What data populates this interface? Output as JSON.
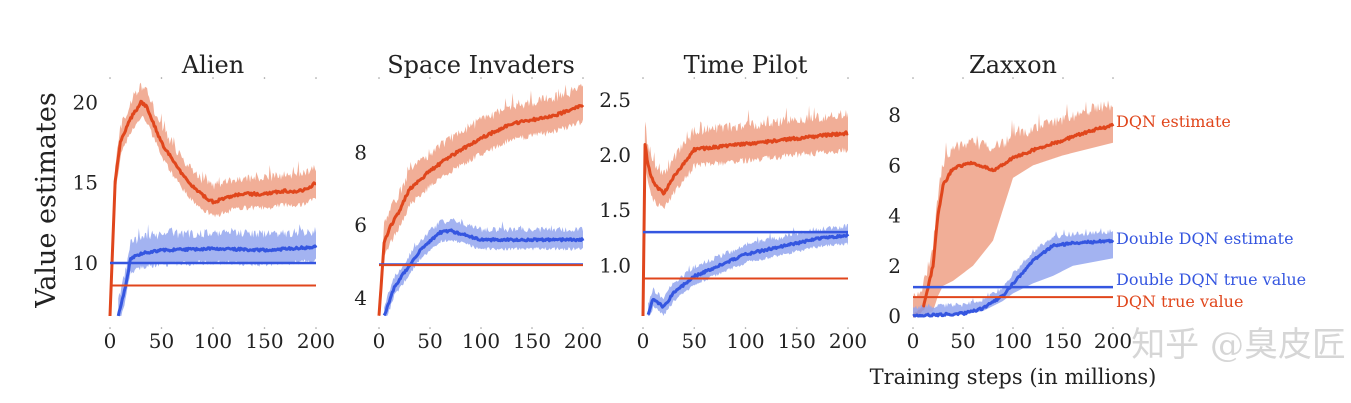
{
  "chart_data": {
    "type": "line",
    "ylabel": "Value estimates",
    "xlabel": "Training steps (in millions)",
    "colors": {
      "dqn": "#e0461c",
      "dqn_band": "#eea085",
      "ddqn": "#3556e0",
      "ddqn_band": "#93a6ee"
    },
    "legend": {
      "placement": "right of last panel",
      "dqn_estimate": "DQN estimate",
      "ddqn_estimate": "Double DQN estimate",
      "ddqn_true": "Double DQN true value",
      "dqn_true": "DQN true value"
    },
    "watermark": "知乎 @臭皮匠",
    "panels": [
      {
        "title": "Alien",
        "xlim": [
          0,
          200
        ],
        "ylim": [
          6.7,
          21.4
        ],
        "xticks": [
          "0",
          "50",
          "100",
          "150",
          "200"
        ],
        "yticks": [
          10,
          15,
          20
        ],
        "ytick_labels": [
          "10",
          "15",
          "20"
        ],
        "dqn_estimate": {
          "x": [
            0,
            5,
            10,
            20,
            30,
            35,
            50,
            60,
            70,
            80,
            90,
            100,
            110,
            120,
            130,
            140,
            150,
            160,
            170,
            180,
            190,
            200
          ],
          "y": [
            6.7,
            15,
            17.5,
            19,
            20,
            19.8,
            17.5,
            16.5,
            15.5,
            14.8,
            14.2,
            13.8,
            14,
            14.2,
            14.3,
            14.3,
            14.3,
            14.4,
            14.5,
            14.4,
            14.6,
            15
          ],
          "band": 0.7
        },
        "ddqn_estimate": {
          "x": [
            8,
            15,
            20,
            30,
            50,
            100,
            150,
            200
          ],
          "y": [
            6.7,
            8.5,
            10.3,
            10.6,
            10.8,
            10.9,
            10.8,
            11
          ],
          "band": 0.7
        },
        "dqn_true": 8.6,
        "ddqn_true": 10
      },
      {
        "title": "Space Invaders",
        "xlim": [
          0,
          200
        ],
        "ylim": [
          3.5,
          10
        ],
        "xticks": [
          "0",
          "50",
          "100",
          "150",
          "200"
        ],
        "yticks": [
          4,
          6,
          8
        ],
        "ytick_labels": [
          "4",
          "6",
          "8"
        ],
        "dqn_estimate": {
          "x": [
            0,
            5,
            10,
            20,
            30,
            50,
            70,
            100,
            130,
            150,
            170,
            190,
            200
          ],
          "y": [
            3.5,
            5.5,
            5.9,
            6.4,
            7.0,
            7.5,
            7.9,
            8.4,
            8.8,
            8.9,
            9.0,
            9.2,
            9.3
          ],
          "band": 0.35
        },
        "ddqn_estimate": {
          "x": [
            5,
            15,
            30,
            40,
            60,
            70,
            100,
            150,
            200
          ],
          "y": [
            3.5,
            4.3,
            4.9,
            5.3,
            5.8,
            5.85,
            5.6,
            5.6,
            5.6
          ],
          "band": 0.2
        },
        "dqn_true": 4.9,
        "ddqn_true": 4.92
      },
      {
        "title": "Time Pilot",
        "xlim": [
          0,
          200
        ],
        "ylim": [
          0.54,
          2.68
        ],
        "xticks": [
          "0",
          "50",
          "100",
          "150",
          "200"
        ],
        "yticks": [
          1.0,
          1.5,
          2.0,
          2.5
        ],
        "ytick_labels": [
          "1.0",
          "1.5",
          "2.0",
          "2.5"
        ],
        "dqn_estimate": {
          "x": [
            0,
            2,
            5,
            10,
            20,
            30,
            50,
            100,
            150,
            200
          ],
          "y": [
            0.54,
            2.1,
            1.9,
            1.75,
            1.65,
            1.8,
            2.05,
            2.1,
            2.15,
            2.2
          ],
          "band": 0.12
        },
        "ddqn_estimate": {
          "x": [
            5,
            10,
            20,
            30,
            50,
            75,
            100,
            125,
            150,
            175,
            200
          ],
          "y": [
            0.56,
            0.7,
            0.62,
            0.75,
            0.9,
            1.0,
            1.1,
            1.15,
            1.2,
            1.25,
            1.27
          ],
          "band": 0.06
        },
        "dqn_true": 0.88,
        "ddqn_true": 1.3
      },
      {
        "title": "Zaxxon",
        "xlim": [
          0,
          200
        ],
        "ylim": [
          0,
          9.4
        ],
        "xticks": [
          "0",
          "50",
          "100",
          "150",
          "200"
        ],
        "yticks": [
          0,
          2,
          4,
          6,
          8
        ],
        "ytick_labels": [
          "0",
          "2",
          "4",
          "6",
          "8"
        ],
        "dqn_estimate": {
          "x": [
            0,
            10,
            20,
            25,
            30,
            40,
            60,
            80,
            100,
            120,
            150,
            180,
            200
          ],
          "y": [
            0,
            0.3,
            2,
            4,
            5.2,
            5.9,
            6.1,
            5.8,
            6.3,
            6.6,
            7,
            7.4,
            7.6
          ],
          "band": 0.6,
          "lower": [
            0,
            0,
            0.2,
            0.8,
            1.2,
            1.4,
            2.0,
            3.0,
            5.5,
            6.0,
            6.4,
            6.7,
            6.9
          ]
        },
        "ddqn_estimate": {
          "x": [
            0,
            50,
            70,
            90,
            100,
            120,
            140,
            160,
            200
          ],
          "y": [
            0,
            0.1,
            0.3,
            0.8,
            1.3,
            2.2,
            2.8,
            2.9,
            3.0
          ],
          "band": 0.25,
          "lower": [
            0,
            0.05,
            0.2,
            0.6,
            0.9,
            1.3,
            1.6,
            2.0,
            2.3
          ]
        },
        "dqn_true": 0.75,
        "ddqn_true": 1.15
      }
    ]
  }
}
